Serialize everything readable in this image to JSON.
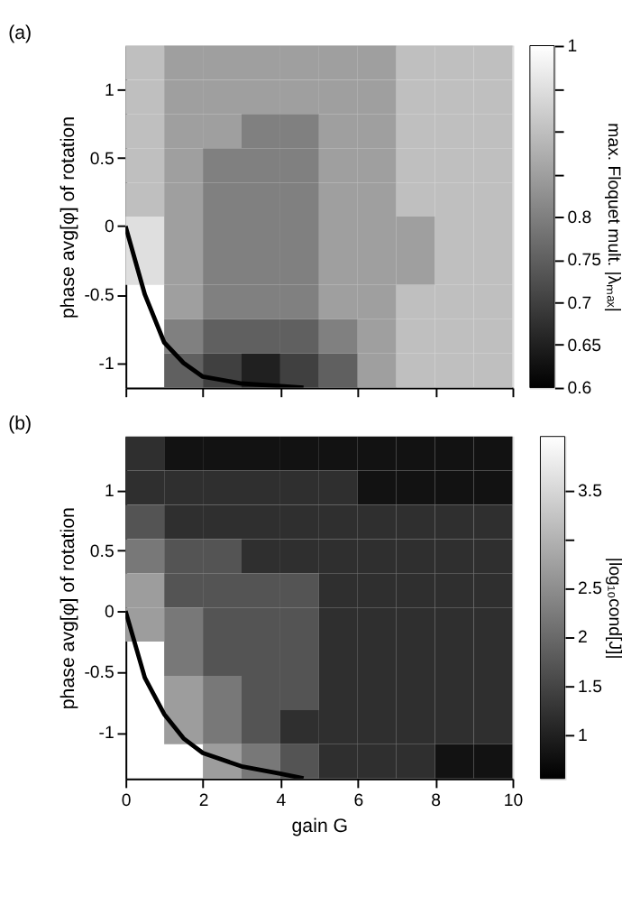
{
  "chart_data": [
    {
      "type": "heatmap",
      "title": "(a)",
      "ylabel": "phase avg[φ] of rotation",
      "clabel": "max. Floquet mult. |λₘₐₓ|",
      "tick_labels": "y",
      "grid": false,
      "x": [
        0.5,
        1.5,
        2.5,
        3.5,
        4.5,
        5.5,
        6.5,
        7.5,
        8.5,
        9.5
      ],
      "xlim": [
        0,
        10
      ],
      "xticks": [
        0,
        2,
        4,
        6,
        8,
        10
      ],
      "ylim": [
        -1.18,
        1.32
      ],
      "yticks": [
        -1,
        -0.5,
        0,
        0.5,
        1
      ],
      "clim": [
        0.6,
        1
      ],
      "cticks": [
        0.6,
        0.65,
        0.7,
        0.75,
        0.8,
        {
          "value": 0.85,
          "label": null
        },
        {
          "value": 0.9,
          "label": null
        },
        {
          "value": 0.95,
          "label": null
        },
        1
      ],
      "cells": [
        [
          0.9,
          0.85,
          0.85,
          0.85,
          0.85,
          0.85,
          0.85,
          0.9,
          0.9,
          0.9
        ],
        [
          0.9,
          0.85,
          0.85,
          0.85,
          0.85,
          0.85,
          0.85,
          0.9,
          0.9,
          0.9
        ],
        [
          0.9,
          0.85,
          0.85,
          0.8,
          0.8,
          0.85,
          0.85,
          0.9,
          0.9,
          0.9
        ],
        [
          0.9,
          0.85,
          0.8,
          0.8,
          0.8,
          0.85,
          0.85,
          0.9,
          0.9,
          0.9
        ],
        [
          0.9,
          0.85,
          0.8,
          0.8,
          0.8,
          0.85,
          0.85,
          0.9,
          0.9,
          0.9
        ],
        [
          0.95,
          0.85,
          0.8,
          0.8,
          0.8,
          0.85,
          0.85,
          0.85,
          0.9,
          0.9
        ],
        [
          0.95,
          0.85,
          0.8,
          0.8,
          0.8,
          0.85,
          0.85,
          0.85,
          0.9,
          0.9
        ],
        [
          null,
          0.85,
          0.8,
          0.8,
          0.8,
          0.85,
          0.85,
          0.9,
          0.9,
          0.9
        ],
        [
          null,
          0.8,
          0.75,
          0.75,
          0.75,
          0.8,
          0.85,
          0.9,
          0.9,
          0.9
        ],
        [
          null,
          0.75,
          0.7,
          0.65,
          0.7,
          0.75,
          0.85,
          0.9,
          0.9,
          0.9
        ]
      ],
      "series": [
        {
          "type": "line",
          "color": "#000000",
          "x": [
            0,
            0.5,
            1,
            1.5,
            2,
            3,
            4.6
          ],
          "values": [
            0,
            -0.5,
            -0.85,
            -1.0,
            -1.1,
            -1.15,
            -1.18
          ]
        }
      ]
    },
    {
      "type": "heatmap",
      "title": "(b)",
      "xlabel": "gain G",
      "ylabel": "phase avg[φ] of rotation",
      "clabel": "|log₁₀cond[J]|",
      "grid": false,
      "x": [
        0.5,
        1.5,
        2.5,
        3.5,
        4.5,
        5.5,
        6.5,
        7.5,
        8.5,
        9.5
      ],
      "xlim": [
        0,
        10
      ],
      "xticks": [
        0,
        2,
        4,
        6,
        8,
        10
      ],
      "ylim": [
        -1.38,
        1.44
      ],
      "yticks": [
        -1,
        -0.5,
        0,
        0.5,
        1
      ],
      "clim": [
        0.55,
        4.05
      ],
      "cticks": [
        1,
        1.5,
        2,
        2.5,
        {
          "value": 3,
          "label": null
        },
        3.5
      ],
      "cells": [
        [
          1.2,
          0.8,
          0.8,
          0.8,
          0.8,
          0.8,
          0.8,
          0.8,
          0.8,
          0.8
        ],
        [
          1.2,
          1.2,
          1.2,
          1.2,
          1.2,
          1.2,
          0.8,
          0.8,
          0.8,
          0.8
        ],
        [
          1.7,
          1.2,
          1.2,
          1.2,
          1.2,
          1.2,
          1.2,
          1.2,
          1.2,
          1.2
        ],
        [
          2.2,
          1.7,
          1.7,
          1.2,
          1.2,
          1.2,
          1.2,
          1.2,
          1.2,
          1.2
        ],
        [
          2.7,
          1.7,
          1.7,
          1.7,
          1.7,
          1.2,
          1.2,
          1.2,
          1.2,
          1.2
        ],
        [
          2.7,
          2.2,
          1.7,
          1.7,
          1.7,
          1.2,
          1.2,
          1.2,
          1.2,
          1.2
        ],
        [
          null,
          2.2,
          1.7,
          1.7,
          1.7,
          1.2,
          1.2,
          1.2,
          1.2,
          1.2
        ],
        [
          null,
          2.7,
          2.2,
          1.7,
          1.7,
          1.2,
          1.2,
          1.2,
          1.2,
          1.2
        ],
        [
          null,
          2.7,
          2.2,
          1.7,
          1.2,
          1.2,
          1.2,
          1.2,
          1.2,
          1.2
        ],
        [
          null,
          null,
          2.7,
          2.2,
          1.7,
          1.2,
          1.2,
          1.2,
          0.8,
          0.8
        ]
      ],
      "series": [
        {
          "type": "line",
          "color": "#000000",
          "x": [
            0,
            0.5,
            1,
            1.5,
            2,
            3,
            4,
            4.6
          ],
          "values": [
            0,
            -0.55,
            -0.85,
            -1.05,
            -1.17,
            -1.28,
            -1.34,
            -1.38
          ]
        }
      ]
    }
  ]
}
